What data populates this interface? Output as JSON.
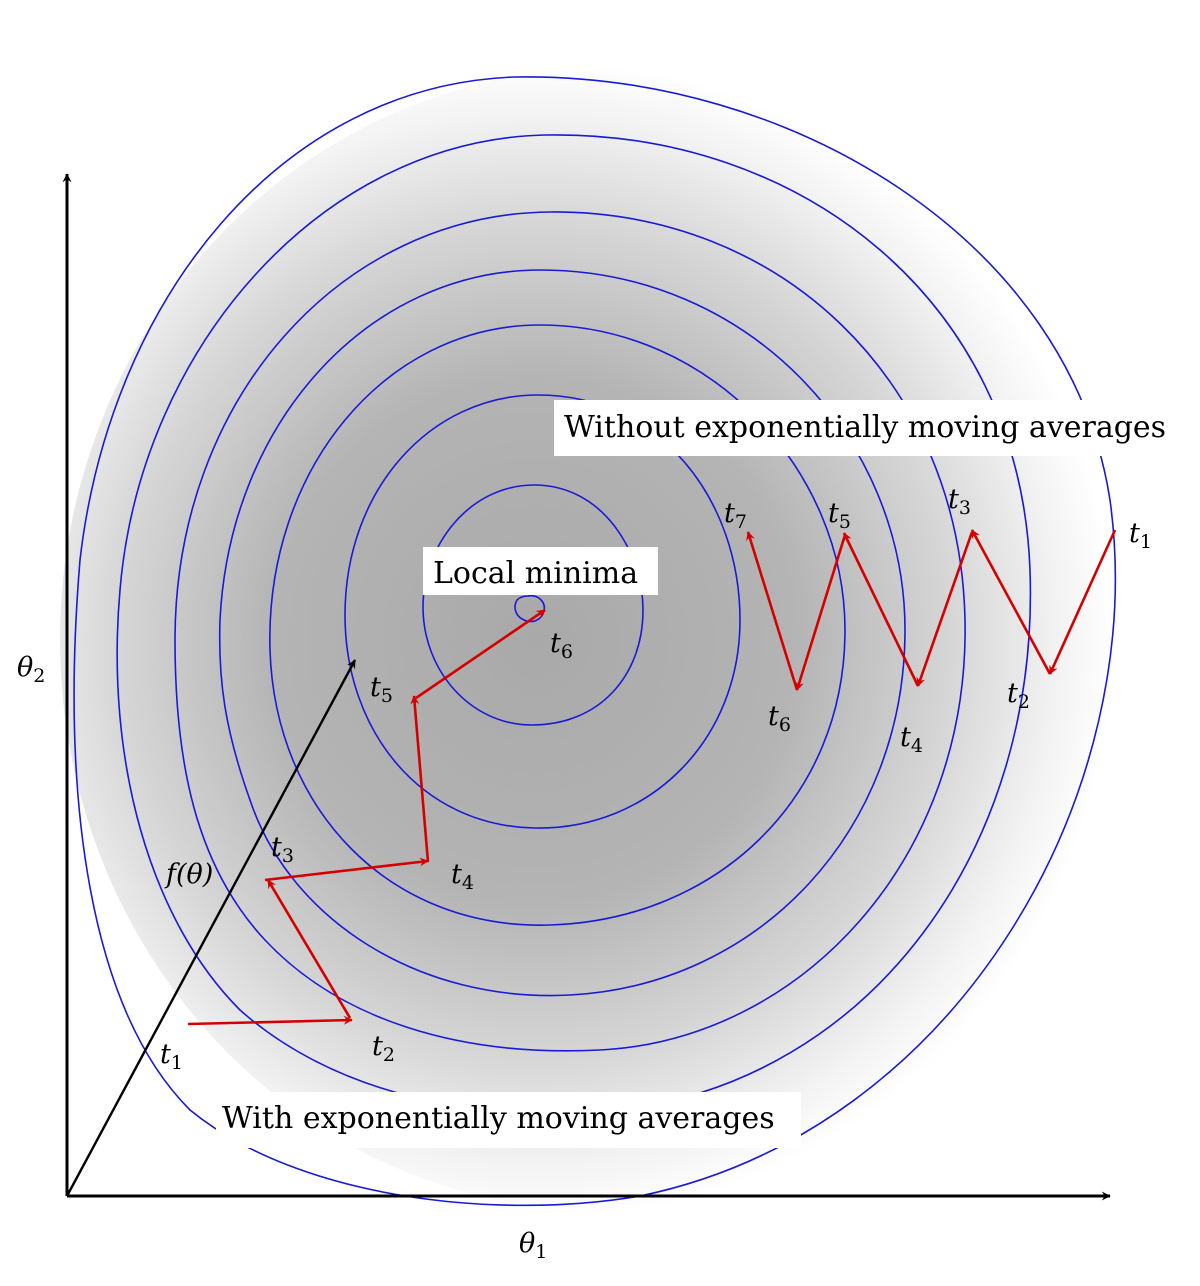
{
  "labels": {
    "theta1": "θ1",
    "theta2": "θ2",
    "f_theta": "f(θ)",
    "local_minima": "Local minima",
    "with_ema": "With exponentially moving averages",
    "without_ema": "Without exponentially moving averages"
  },
  "with_ema_steps": [
    "t1",
    "t2",
    "t3",
    "t4",
    "t5",
    "t6"
  ],
  "without_ema_steps": [
    "t1",
    "t2",
    "t3",
    "t4",
    "t5",
    "t6",
    "t7"
  ],
  "colors": {
    "contour": "#1a1ad6",
    "path": "#d40000",
    "axes": "#000000",
    "shade_dark": "#a9a9a9",
    "shade_light": "#ffffff"
  }
}
